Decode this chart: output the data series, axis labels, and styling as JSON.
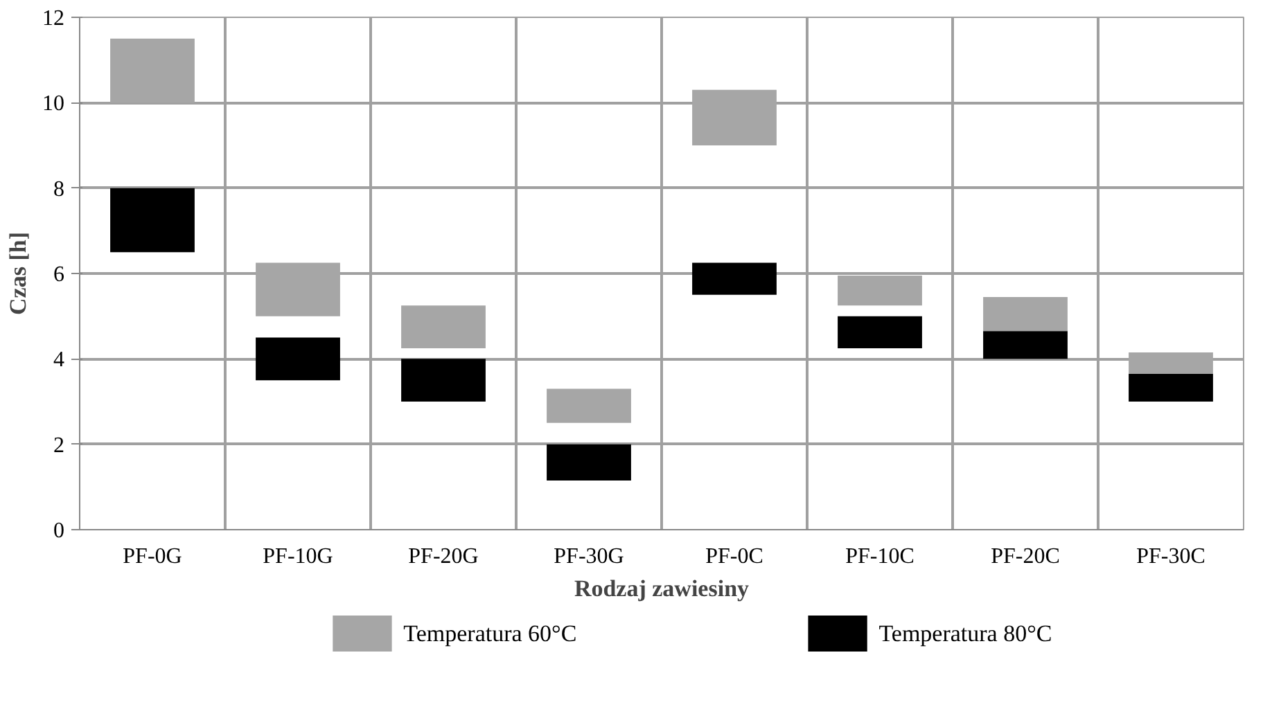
{
  "chart_data": {
    "type": "bar",
    "xlabel": "Rodzaj zawiesiny",
    "ylabel": "Czas [h]",
    "categories": [
      "PF-0G",
      "PF-10G",
      "PF-20G",
      "PF-30G",
      "PF-0C",
      "PF-10C",
      "PF-20C",
      "PF-30C"
    ],
    "series": [
      {
        "name": "Temperatura 60°C",
        "color": "#a6a6a6",
        "base": [
          10,
          5,
          4.25,
          2.5,
          9,
          5.25,
          4.65,
          3.65
        ],
        "values": [
          1.5,
          1.25,
          1,
          0.8,
          1.3,
          0.7,
          0.8,
          0.5
        ]
      },
      {
        "name": "Temperatura 80°C",
        "color": "#000000",
        "base": [
          6.5,
          3.5,
          3,
          1.15,
          5.5,
          4.25,
          4,
          3
        ],
        "values": [
          1.5,
          1,
          1,
          0.85,
          0.75,
          0.75,
          0.65,
          0.65
        ]
      }
    ],
    "ylim": [
      0,
      12
    ],
    "yticks": [
      0,
      2,
      4,
      6,
      8,
      10,
      12
    ],
    "grid": true,
    "legend": "bottom"
  }
}
